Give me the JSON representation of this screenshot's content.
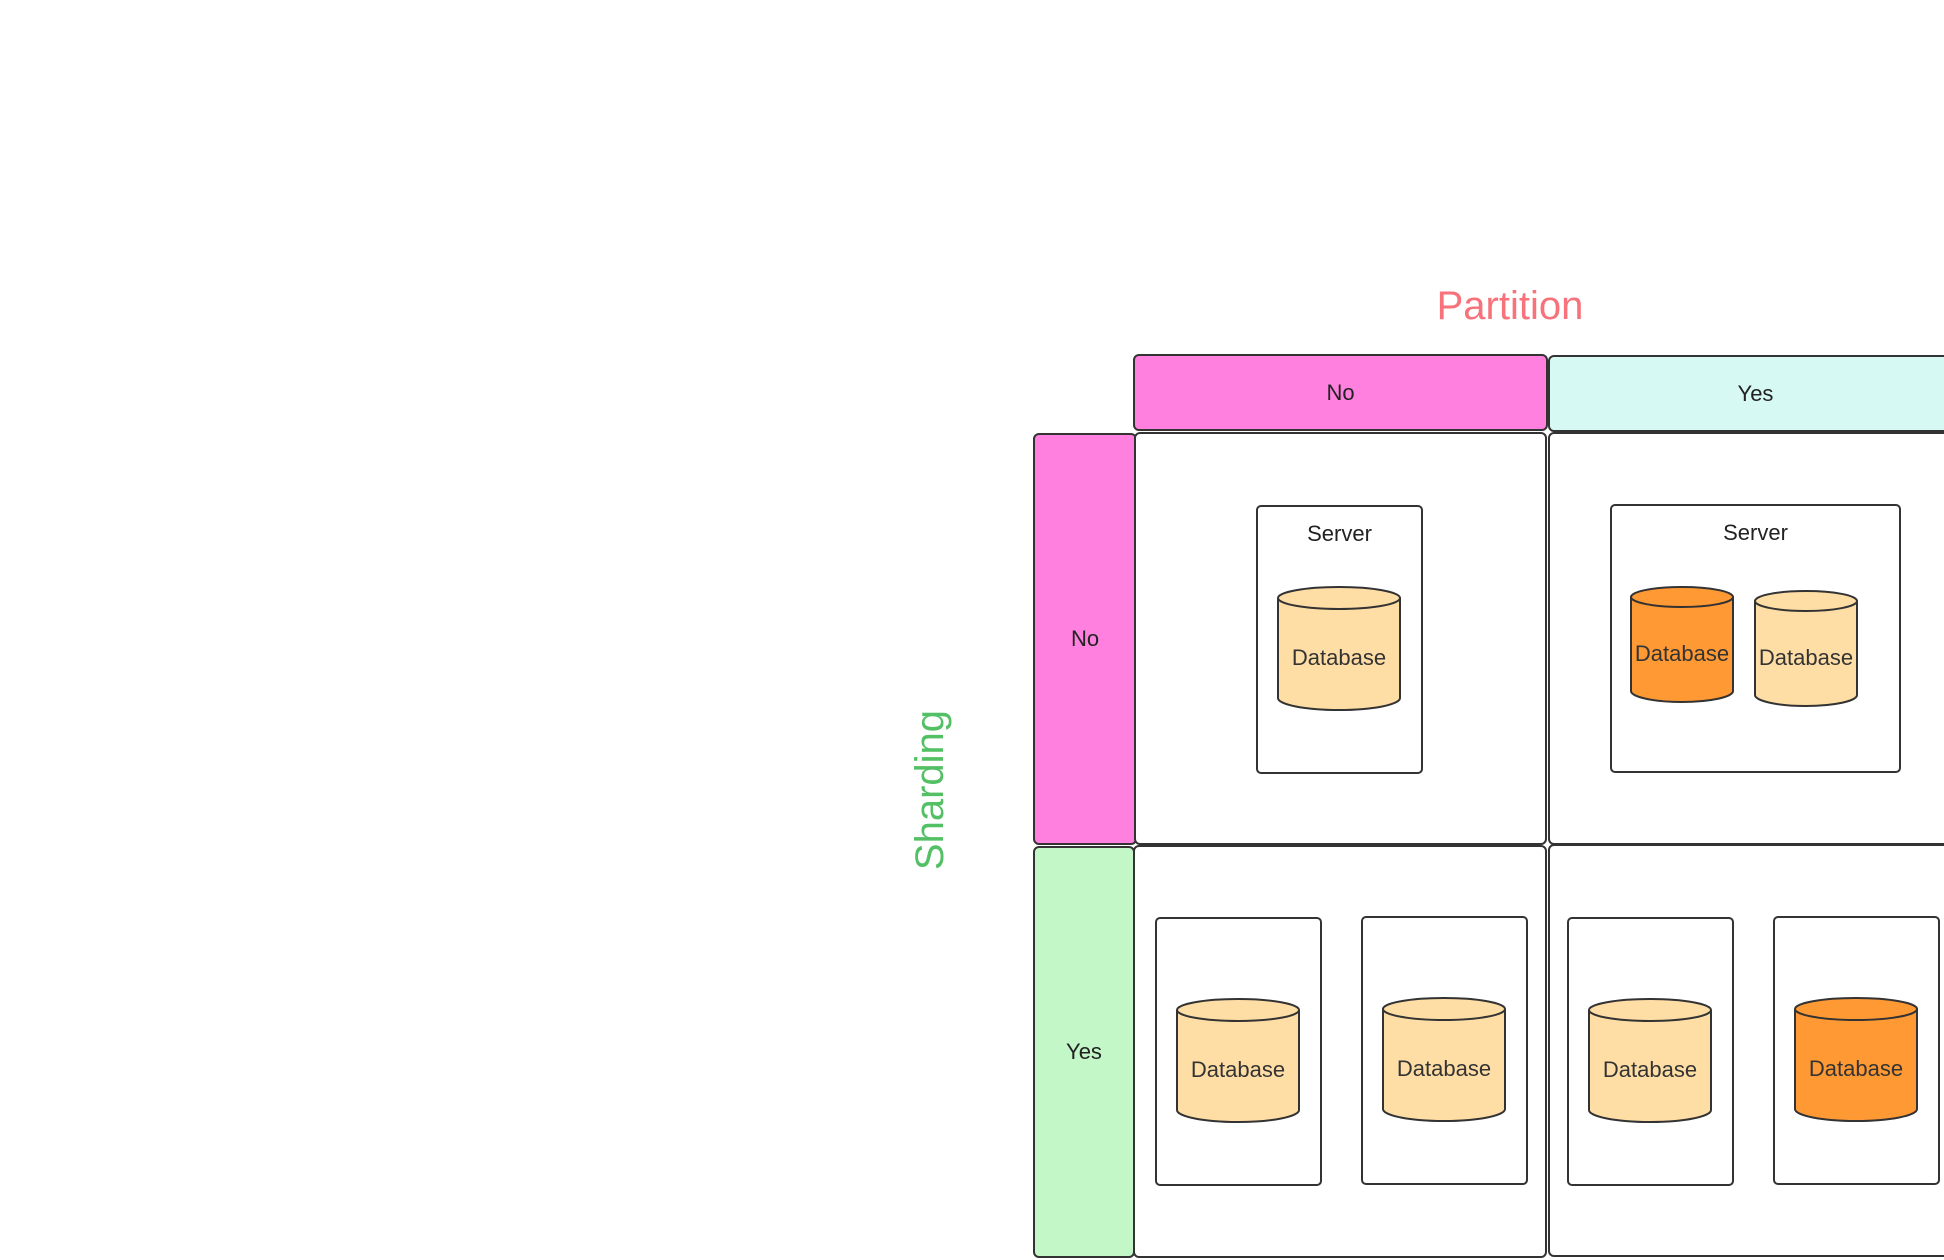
{
  "axes": {
    "partition": {
      "label": "Partition",
      "color": "#F7727A"
    },
    "sharding": {
      "label": "Sharding",
      "color": "#54C065"
    }
  },
  "column_headers": [
    {
      "label": "No",
      "color": "#FF80DF"
    },
    {
      "label": "Yes",
      "color": "#D6F9F3"
    }
  ],
  "row_headers": [
    {
      "label": "No",
      "color": "#FF80DF"
    },
    {
      "label": "Yes",
      "color": "#C3F7C8"
    }
  ],
  "cells": {
    "no_no": {
      "server_label": "Server",
      "databases": [
        "Database"
      ]
    },
    "no_yes": {
      "server_label": "Server",
      "databases": [
        "Database",
        "Database"
      ]
    },
    "yes_no": {
      "databases": [
        "Database",
        "Database"
      ]
    },
    "yes_yes": {
      "databases": [
        "Database",
        "Database"
      ]
    }
  },
  "colors": {
    "database_default": "#FFDEA6",
    "database_highlight": "#FF9934",
    "outline": "#333333"
  }
}
